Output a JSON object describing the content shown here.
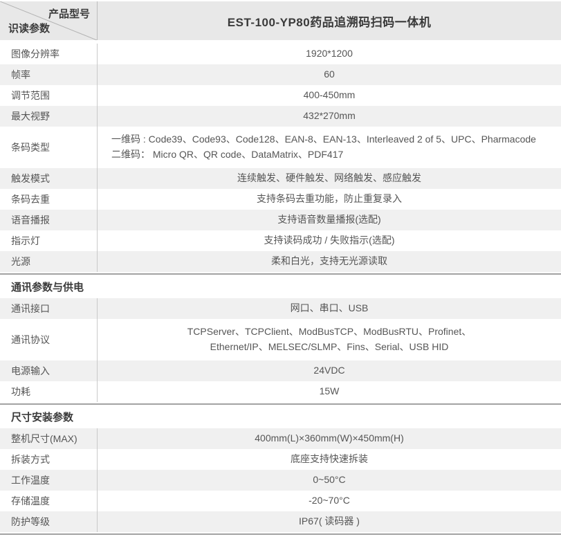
{
  "colors": {
    "header_bg": "#e8e8e8",
    "shaded_bg": "#f0f0f0",
    "text": "#555555",
    "heading_text": "#3a3a3a",
    "divider": "#c9c9c9",
    "diagonal": "#b3b3b3",
    "section_line": "#a2a2a2"
  },
  "header": {
    "corner_top": "产品型号",
    "corner_bottom": "识读参数",
    "product_title": "EST-100-YP80药品追溯码扫码一体机"
  },
  "sections": [
    {
      "title": "",
      "rows": [
        {
          "label": "图像分辨率",
          "value": "1920*1200"
        },
        {
          "label": "帧率",
          "value": "60"
        },
        {
          "label": "调节范围",
          "value": "400-450mm"
        },
        {
          "label": "最大视野",
          "value": "432*270mm"
        },
        {
          "label": "条码类型",
          "align": "left",
          "value_lines": [
            "一维码 : Code39、Code93、Code128、EAN-8、EAN-13、Interleaved 2 of 5、UPC、Pharmacode",
            "二维码： Micro QR、QR code、DataMatrix、PDF417"
          ]
        },
        {
          "label": "触发模式",
          "value": "连续触发、硬件触发、网络触发、感应触发"
        },
        {
          "label": "条码去重",
          "value": "支持条码去重功能，防止重复录入"
        },
        {
          "label": "语音播报",
          "value": "支持语音数量播报(选配)"
        },
        {
          "label": "指示灯",
          "value": "支持读码成功 / 失败指示(选配)"
        },
        {
          "label": "光源",
          "value": "柔和白光，支持无光源读取"
        }
      ]
    },
    {
      "title": "通讯参数与供电",
      "rows": [
        {
          "label": "通讯接口",
          "value": "网口、串口、USB"
        },
        {
          "label": "通讯协议",
          "value_lines": [
            "TCPServer、TCPClient、ModBusTCP、ModBusRTU、Profinet、",
            "Ethernet/IP、MELSEC/SLMP、Fins、Serial、USB HID"
          ]
        },
        {
          "label": "电源输入",
          "value": "24VDC"
        },
        {
          "label": "功耗",
          "value": "15W"
        }
      ]
    },
    {
      "title": "尺寸安装参数",
      "rows": [
        {
          "label": "整机尺寸(MAX)",
          "value": "400mm(L)×360mm(W)×450mm(H)"
        },
        {
          "label": "拆装方式",
          "value": "底座支持快速拆装"
        },
        {
          "label": "工作温度",
          "value": "0~50°C"
        },
        {
          "label": "存储温度",
          "value": "-20~70°C"
        },
        {
          "label": "防护等级",
          "value": "IP67( 读码器 )"
        }
      ]
    }
  ]
}
